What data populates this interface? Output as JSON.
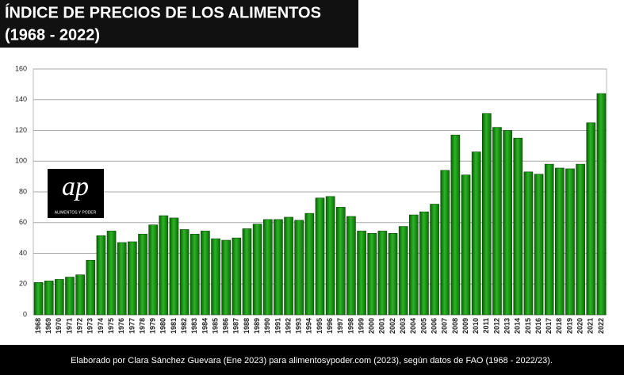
{
  "chart_data": {
    "type": "bar",
    "title": "ÍNDICE DE PRECIOS DE LOS ALIMENTOS",
    "subtitle": "(1968 - 2022)",
    "annotations": [
      "ap",
      "ALIMENTOS Y PODER"
    ],
    "source": "Elaborado por Clara Sánchez Guevara (Ene 2023)  para alimentosypoder.com (2023), según datos de FAO (1968 - 2022/23).",
    "categories": [
      "1968",
      "1969",
      "1970",
      "1971",
      "1972",
      "1973",
      "1974",
      "1975",
      "1976",
      "1977",
      "1978",
      "1979",
      "1980",
      "1981",
      "1982",
      "1983",
      "1984",
      "1985",
      "1986",
      "1987",
      "1988",
      "1989",
      "1990",
      "1991",
      "1992",
      "1993",
      "1994",
      "1995",
      "1996",
      "1997",
      "1998",
      "1999",
      "2000",
      "2001",
      "2002",
      "2003",
      "2004",
      "2005",
      "2006",
      "2007",
      "2008",
      "2009",
      "2010",
      "2011",
      "2012",
      "2013",
      "2014",
      "2015",
      "2016",
      "2017",
      "2018",
      "2019",
      "2020",
      "2021",
      "2022"
    ],
    "values": [
      21,
      22,
      23,
      24.5,
      26,
      35.5,
      51.5,
      54.5,
      47,
      47.5,
      52.5,
      58.5,
      64.5,
      63,
      55.5,
      52.5,
      54.5,
      49.5,
      48.5,
      50,
      56,
      59,
      62,
      62,
      63.5,
      61.5,
      66,
      76,
      77,
      70,
      64,
      54.5,
      53,
      54.5,
      53,
      57.5,
      65,
      67,
      72,
      94,
      117,
      91,
      106,
      131,
      122,
      120,
      115,
      93,
      91.5,
      98,
      95.5,
      95,
      98,
      125,
      144
    ],
    "color": "#1a9a14",
    "ylim": [
      0,
      160
    ],
    "yticks": [
      0,
      20,
      40,
      60,
      80,
      100,
      120,
      140,
      160
    ],
    "grid": true
  }
}
